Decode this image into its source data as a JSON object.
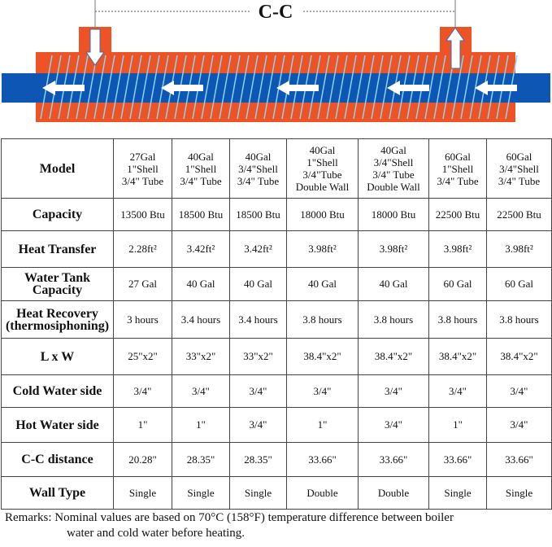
{
  "diagram": {
    "cc_label": "C-C"
  },
  "table": {
    "rows": [
      {
        "label": "Model",
        "cells": [
          [
            "27Gal",
            "1\"Shell",
            "3/4\" Tube"
          ],
          [
            "40Gal",
            "1\"Shell",
            "3/4\" Tube"
          ],
          [
            "40Gal",
            "3/4\"Shell",
            "3/4\" Tube"
          ],
          [
            "40Gal",
            "1\"Shell",
            "3/4\"Tube",
            "Double Wall"
          ],
          [
            "40Gal",
            "3/4\"Shell",
            "3/4\" Tube",
            "Double Wall"
          ],
          [
            "60Gal",
            "1\"Shell",
            "3/4\" Tube"
          ],
          [
            "60Gal",
            "3/4\"Shell",
            "3/4\" Tube"
          ]
        ]
      },
      {
        "label": "Capacity",
        "cells": [
          [
            "13500 Btu"
          ],
          [
            "18500 Btu"
          ],
          [
            "18500 Btu"
          ],
          [
            "18000 Btu"
          ],
          [
            "18000 Btu"
          ],
          [
            "22500 Btu"
          ],
          [
            "22500 Btu"
          ]
        ]
      },
      {
        "label": "Heat Transfer",
        "cells": [
          [
            "2.28ft²"
          ],
          [
            "3.42ft²"
          ],
          [
            "3.42ft²"
          ],
          [
            "3.98ft²"
          ],
          [
            "3.98ft²"
          ],
          [
            "3.98ft²"
          ],
          [
            "3.98ft²"
          ]
        ]
      },
      {
        "label": "Water Tank Capacity",
        "label_lines": [
          "Water Tank",
          "Capacity"
        ],
        "cells": [
          [
            "27 Gal"
          ],
          [
            "40 Gal"
          ],
          [
            "40 Gal"
          ],
          [
            "40 Gal"
          ],
          [
            "40 Gal"
          ],
          [
            "60 Gal"
          ],
          [
            "60 Gal"
          ]
        ]
      },
      {
        "label": "Heat Recovery (thermosiphoning)",
        "label_lines": [
          "Heat  Recovery",
          "(thermosiphoning)"
        ],
        "cells": [
          [
            "3 hours"
          ],
          [
            "3.4 hours"
          ],
          [
            "3.4 hours"
          ],
          [
            "3.8 hours"
          ],
          [
            "3.8 hours"
          ],
          [
            "3.8 hours"
          ],
          [
            "3.8 hours"
          ]
        ]
      },
      {
        "label": "L x W",
        "cells": [
          [
            "25\"x2\""
          ],
          [
            "33\"x2\""
          ],
          [
            "33\"x2\""
          ],
          [
            "38.4\"x2\""
          ],
          [
            "38.4\"x2\""
          ],
          [
            "38.4\"x2\""
          ],
          [
            "38.4\"x2\""
          ]
        ]
      },
      {
        "label": "Cold Water side",
        "cells": [
          [
            "3/4\""
          ],
          [
            "3/4\""
          ],
          [
            "3/4\""
          ],
          [
            "3/4\""
          ],
          [
            "3/4\""
          ],
          [
            "3/4\""
          ],
          [
            "3/4\""
          ]
        ]
      },
      {
        "label": "Hot Water side",
        "cells": [
          [
            "1\""
          ],
          [
            "1\""
          ],
          [
            "3/4\""
          ],
          [
            "1\""
          ],
          [
            "3/4\""
          ],
          [
            "1\""
          ],
          [
            "3/4\""
          ]
        ]
      },
      {
        "label": "C-C distance",
        "cells": [
          [
            "20.28\""
          ],
          [
            "28.35\""
          ],
          [
            "28.35\""
          ],
          [
            "33.66\""
          ],
          [
            "33.66\""
          ],
          [
            "33.66\""
          ],
          [
            "33.66\""
          ]
        ]
      },
      {
        "label": "Wall Type",
        "cells": [
          [
            "Single"
          ],
          [
            "Single"
          ],
          [
            "Single"
          ],
          [
            "Double"
          ],
          [
            "Double"
          ],
          [
            "Single"
          ],
          [
            "Single"
          ]
        ]
      }
    ]
  },
  "remarks": {
    "line1": "Remarks: Nominal values are based on 70°C (158°F) temperature difference between boiler",
    "line2": "water and cold water before heating."
  },
  "colors": {
    "shell": "#ee5326",
    "tube": "#0d56b4",
    "coil": "#89d4f2",
    "arrow": "#ffffff"
  }
}
